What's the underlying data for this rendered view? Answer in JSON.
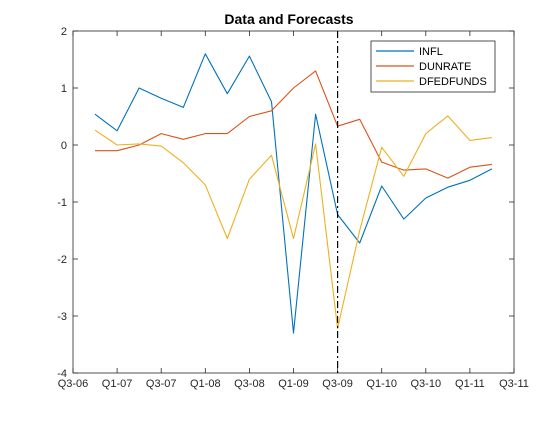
{
  "chart_data": {
    "type": "line",
    "title": "Data and Forecasts",
    "xlabel": "",
    "ylabel": "",
    "x_ticks": [
      "Q3-06",
      "Q1-07",
      "Q3-07",
      "Q1-08",
      "Q3-08",
      "Q1-09",
      "Q3-09",
      "Q1-10",
      "Q3-10",
      "Q1-11",
      "Q3-11"
    ],
    "y_ticks": [
      "-4",
      "-3",
      "-2",
      "-1",
      "0",
      "1",
      "2"
    ],
    "xlim": [
      0,
      20
    ],
    "ylim": [
      -4,
      2
    ],
    "grid": false,
    "legend_position": "top-right",
    "vertical_line": {
      "x": 12,
      "style": "dash-dot",
      "color": "#000000"
    },
    "series": [
      {
        "name": "INFL",
        "color": "#0072BD",
        "x": [
          1,
          2,
          3,
          4,
          5,
          6,
          7,
          8,
          9,
          10,
          11,
          12,
          13,
          14,
          15,
          16,
          17,
          18,
          19
        ],
        "values": [
          0.54,
          0.25,
          1.0,
          0.82,
          0.66,
          1.6,
          0.9,
          1.56,
          0.76,
          -3.3,
          0.54,
          -1.22,
          -1.72,
          -0.72,
          -1.3,
          -0.93,
          -0.74,
          -0.62,
          -0.42
        ]
      },
      {
        "name": "DUNRATE",
        "color": "#D95319",
        "x": [
          1,
          2,
          3,
          4,
          5,
          6,
          7,
          8,
          9,
          10,
          11,
          12,
          13,
          14,
          15,
          16,
          17,
          18,
          19
        ],
        "values": [
          -0.1,
          -0.1,
          0.0,
          0.2,
          0.1,
          0.2,
          0.2,
          0.5,
          0.6,
          1.0,
          1.3,
          0.33,
          0.45,
          -0.3,
          -0.44,
          -0.42,
          -0.58,
          -0.39,
          -0.34
        ]
      },
      {
        "name": "DFEDFUNDS",
        "color": "#EDB120",
        "x": [
          1,
          2,
          3,
          4,
          5,
          6,
          7,
          8,
          9,
          10,
          11,
          12,
          13,
          14,
          15,
          16,
          17,
          18,
          19
        ],
        "values": [
          0.26,
          0.0,
          0.02,
          -0.02,
          -0.31,
          -0.7,
          -1.64,
          -0.6,
          -0.18,
          -1.64,
          0.02,
          -3.22,
          -1.5,
          -0.04,
          -0.55,
          0.2,
          0.51,
          0.08,
          0.13
        ]
      }
    ]
  }
}
